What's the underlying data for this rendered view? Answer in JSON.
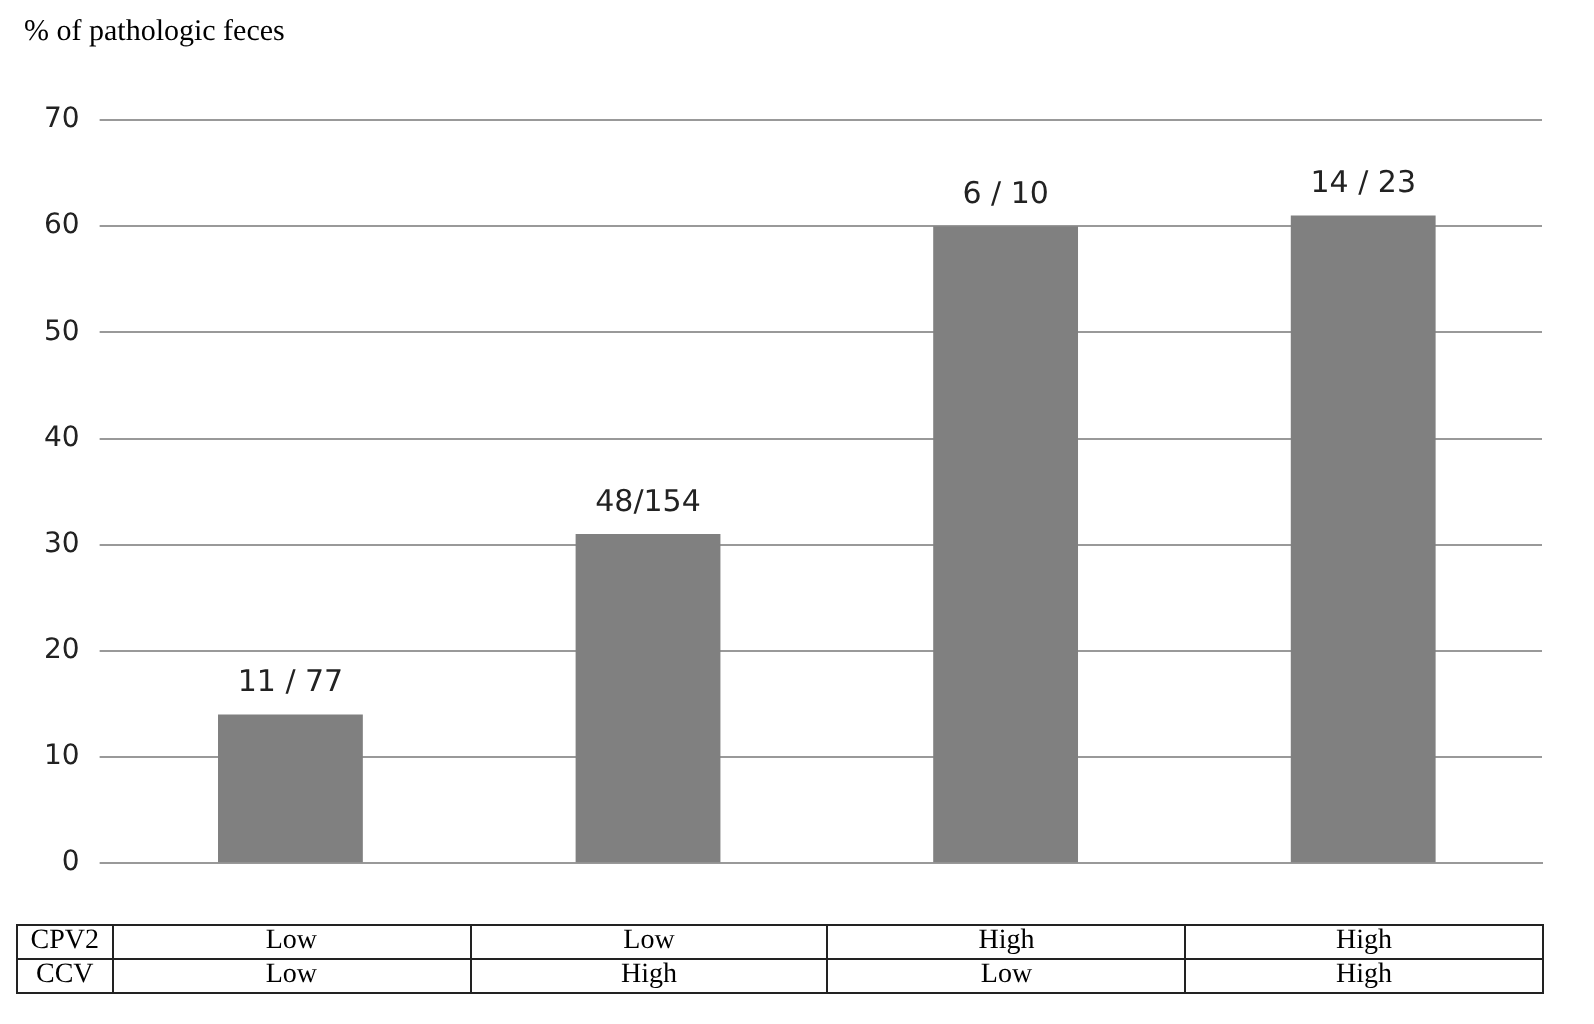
{
  "chart_data": {
    "type": "bar",
    "ylabel": "% of pathologic feces",
    "categories": [
      null,
      null,
      null,
      null
    ],
    "annotations": [
      "CPV2",
      "Low",
      "Low",
      "High",
      "High",
      "CCV",
      "Low",
      "High",
      "Low",
      "High",
      {
        "text": "11 / 77",
        "y": 14
      },
      {
        "text": "48/154",
        "y": 31
      },
      {
        "text": "6 / 10",
        "y": 60
      },
      {
        "text": "14 / 23",
        "y": 61
      }
    ],
    "values": [
      14,
      31,
      60,
      61
    ],
    "color": "#808080",
    "ylim": [
      0,
      70
    ],
    "yticks": [
      0,
      10,
      20,
      30,
      40,
      50,
      60,
      70
    ],
    "grid": "y",
    "legend": false
  }
}
